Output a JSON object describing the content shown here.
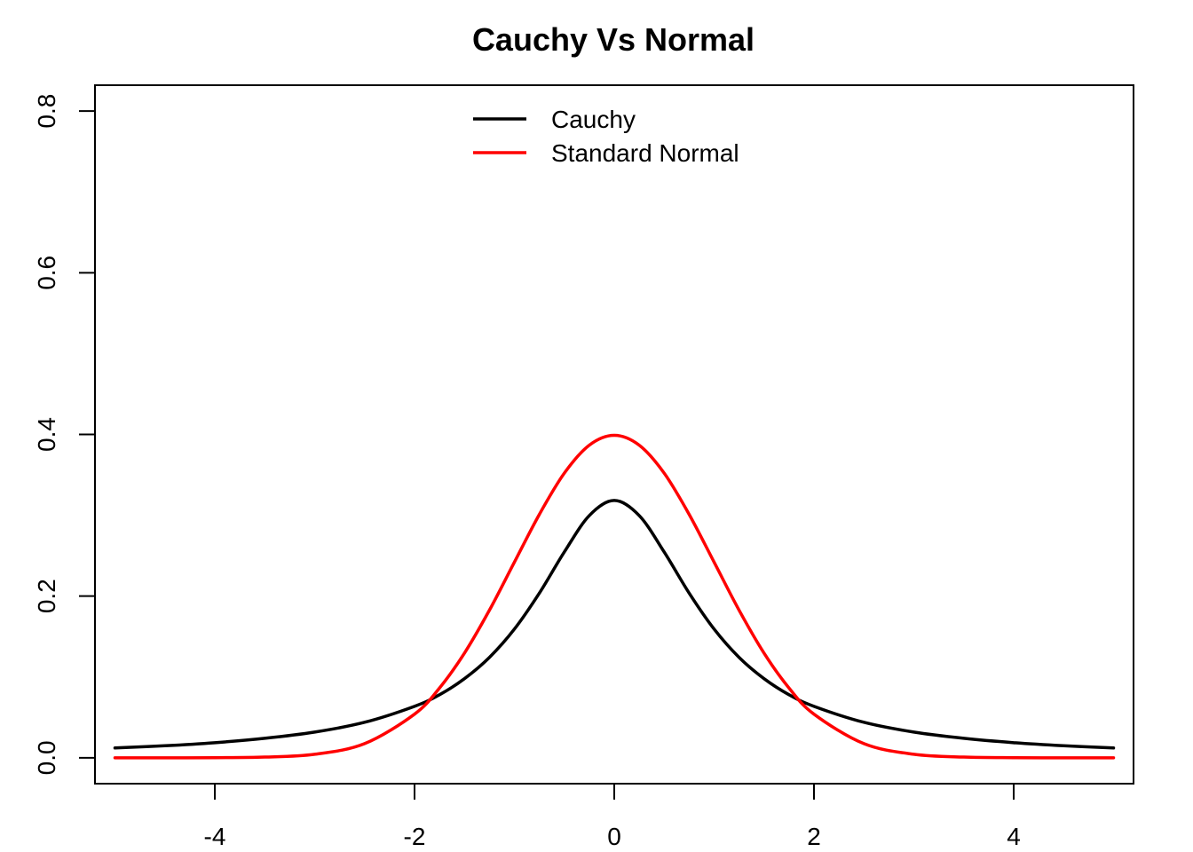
{
  "chart_data": {
    "type": "line",
    "title": "Cauchy Vs Normal",
    "xlabel": "",
    "ylabel": "",
    "xlim": [
      -5.2,
      5.2
    ],
    "ylim": [
      -0.032,
      0.832
    ],
    "x_ticks": [
      -4,
      -2,
      0,
      2,
      4
    ],
    "x_tick_labels": [
      "-4",
      "-2",
      "0",
      "2",
      "4"
    ],
    "y_ticks": [
      0.0,
      0.2,
      0.4,
      0.6,
      0.8
    ],
    "y_tick_labels": [
      "0.0",
      "0.2",
      "0.4",
      "0.6",
      "0.8"
    ],
    "grid": false,
    "legend_position": "top-center",
    "x": [
      -5,
      -4.5,
      -4,
      -3.5,
      -3,
      -2.5,
      -2,
      -1.75,
      -1.5,
      -1.25,
      -1,
      -0.75,
      -0.5,
      -0.25,
      0,
      0.25,
      0.5,
      0.75,
      1,
      1.25,
      1.5,
      1.75,
      2,
      2.5,
      3,
      3.5,
      4,
      4.5,
      5
    ],
    "series": [
      {
        "name": "Cauchy",
        "color": "#000000",
        "values": [
          0.0122,
          0.0149,
          0.0187,
          0.0241,
          0.0318,
          0.0439,
          0.0637,
          0.078,
          0.0979,
          0.1242,
          0.1592,
          0.2037,
          0.2546,
          0.2996,
          0.3183,
          0.2996,
          0.2546,
          0.2037,
          0.1592,
          0.1242,
          0.0979,
          0.078,
          0.0637,
          0.0439,
          0.0318,
          0.0241,
          0.0187,
          0.0149,
          0.0122
        ]
      },
      {
        "name": "Standard Normal",
        "color": "#ff0000",
        "values": [
          0.0,
          0.0,
          0.0001,
          0.0009,
          0.0044,
          0.0175,
          0.054,
          0.0863,
          0.1295,
          0.1826,
          0.242,
          0.3011,
          0.3521,
          0.3867,
          0.3989,
          0.3867,
          0.3521,
          0.3011,
          0.242,
          0.1826,
          0.1295,
          0.0863,
          0.054,
          0.0175,
          0.0044,
          0.0009,
          0.0001,
          0.0,
          0.0
        ]
      }
    ]
  }
}
